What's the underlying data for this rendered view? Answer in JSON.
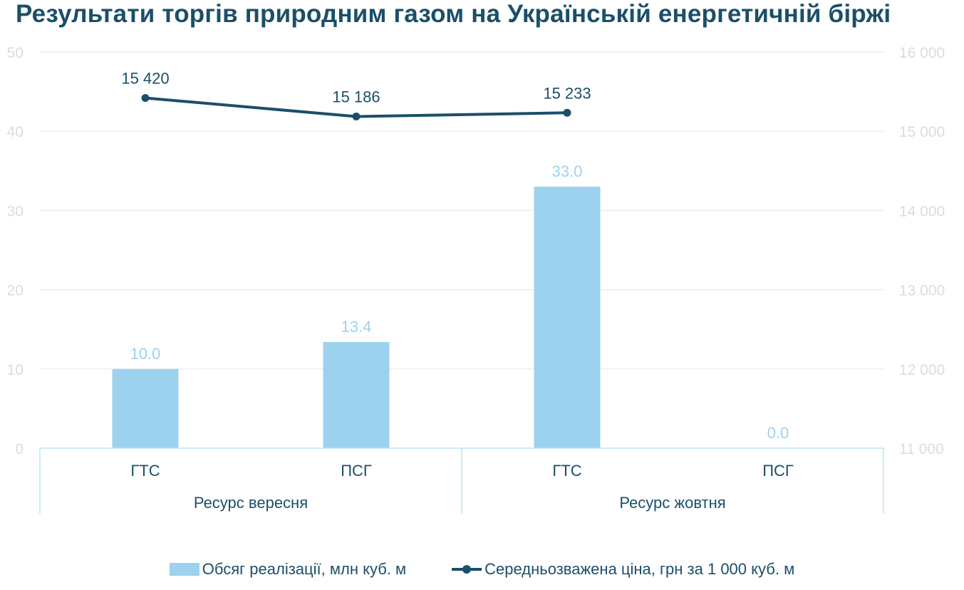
{
  "title": "Результати торгів природним газом на Українській енергетичній біржі",
  "chart_data": {
    "type": "bar",
    "categories": [
      "ГТС",
      "ПСГ",
      "ГТС",
      "ПСГ"
    ],
    "groups": [
      {
        "label": "Ресурс вересня",
        "categories": [
          "ГТС",
          "ПСГ"
        ]
      },
      {
        "label": "Ресурс жовтня",
        "categories": [
          "ГТС",
          "ПСГ"
        ]
      }
    ],
    "series": [
      {
        "name": "Обсяг реалізації, млн куб. м",
        "type": "bar",
        "axis": "left",
        "values": [
          10.0,
          13.4,
          33.0,
          0.0
        ],
        "labels": [
          "10.0",
          "13.4",
          "33.0",
          "0.0"
        ],
        "color": "#9dd2ee"
      },
      {
        "name": "Середньозважена ціна, грн за 1 000 куб. м",
        "type": "line",
        "axis": "right",
        "values": [
          15420,
          15186,
          15233,
          null
        ],
        "labels": [
          "15 420",
          "15 186",
          "15 233",
          ""
        ],
        "color": "#1b4f69"
      }
    ],
    "y_left": {
      "min": 0,
      "max": 50,
      "ticks": [
        "0",
        "10",
        "20",
        "30",
        "40",
        "50"
      ]
    },
    "y_right": {
      "min": 11000,
      "max": 16000,
      "ticks": [
        "11 000",
        "12 000",
        "13 000",
        "14 000",
        "15 000",
        "16 000"
      ]
    },
    "grid": true,
    "legend_position": "bottom"
  }
}
